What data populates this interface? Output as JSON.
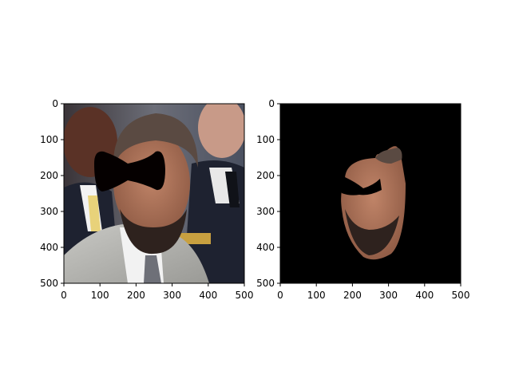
{
  "figure": {
    "background": "#ffffff",
    "panels": [
      {
        "id": "left",
        "content": "photo-with-black-bowtie-mask",
        "x_ticks": [
          "0",
          "100",
          "200",
          "300",
          "400",
          "500"
        ],
        "y_ticks": [
          "0",
          "100",
          "200",
          "300",
          "400",
          "500"
        ],
        "xlim": [
          0,
          500
        ],
        "ylim": [
          500,
          0
        ]
      },
      {
        "id": "right",
        "content": "segmented-face-on-black",
        "x_ticks": [
          "0",
          "100",
          "200",
          "300",
          "400",
          "500"
        ],
        "y_ticks": [
          "0",
          "100",
          "200",
          "300",
          "400",
          "500"
        ],
        "xlim": [
          0,
          500
        ],
        "ylim": [
          500,
          0
        ]
      }
    ]
  },
  "colors": {
    "mask_black": "#050000",
    "skin": "#a87058",
    "skin_shadow": "#6b3f2e",
    "hair": "#5a4a42",
    "beard": "#2e221e",
    "suit_gray": "#b8b8b4",
    "suit_dark": "#1e2230",
    "background_dark": "#303848",
    "tie_yellow": "#e8d27a",
    "shirt_white": "#f2f2f2"
  }
}
